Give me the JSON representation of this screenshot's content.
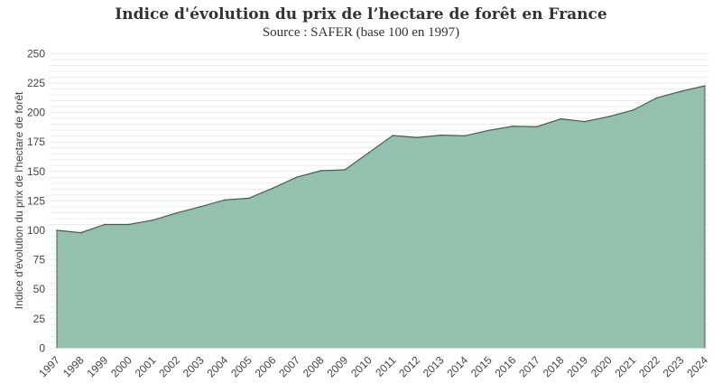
{
  "chart_data": {
    "type": "area",
    "title": "Indice d'évolution du prix de l’hectare de forêt en France",
    "subtitle": "Source : SAFER (base 100 en 1997)",
    "xlabel": "",
    "ylabel": "Indice d'évolution du prix de l'hectare de forêt",
    "ylim": [
      0,
      250
    ],
    "yticks": [
      0,
      25,
      50,
      75,
      100,
      125,
      150,
      175,
      200,
      225,
      250
    ],
    "grid": true,
    "categories": [
      "1997",
      "1998",
      "1999",
      "2000",
      "2001",
      "2002",
      "2003",
      "2004",
      "2005",
      "2006",
      "2007",
      "2008",
      "2009",
      "2010",
      "2011",
      "2012",
      "2013",
      "2014",
      "2015",
      "2016",
      "2017",
      "2018",
      "2019",
      "2020",
      "2021",
      "2022",
      "2023",
      "2024"
    ],
    "values": [
      100,
      98,
      105,
      105,
      108.7,
      114.8,
      120.2,
      125.8,
      127.3,
      135.8,
      145.2,
      150.6,
      151.4,
      166,
      180.5,
      178.8,
      180.8,
      180.3,
      184.9,
      188.4,
      188,
      194.6,
      192.3,
      196.6,
      202,
      212.5,
      218,
      222.7
    ],
    "colors": {
      "fill": "#94c0ae",
      "line": "#4d5a56",
      "grid": "#ececec"
    }
  }
}
